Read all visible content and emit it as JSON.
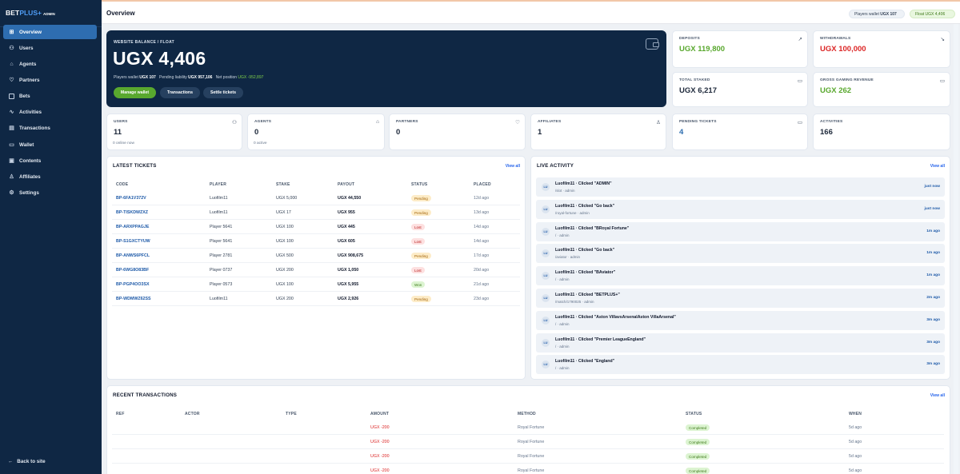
{
  "brand": {
    "part1": "BET",
    "part2": "PLUS+",
    "suffix": "ADMIN"
  },
  "sidebar": {
    "items": [
      {
        "label": "Overview",
        "icon": "dashboard-icon",
        "active": true
      },
      {
        "label": "Users",
        "icon": "users-icon"
      },
      {
        "label": "Agents",
        "icon": "store-icon"
      },
      {
        "label": "Partners",
        "icon": "handshake-icon"
      },
      {
        "label": "Bets",
        "icon": "ticket-icon"
      },
      {
        "label": "Activities",
        "icon": "activity-icon"
      },
      {
        "label": "Transactions",
        "icon": "receipt-icon"
      },
      {
        "label": "Wallet",
        "icon": "wallet-icon"
      },
      {
        "label": "Contents",
        "icon": "content-icon"
      },
      {
        "label": "Affiliates",
        "icon": "user-icon"
      },
      {
        "label": "Settings",
        "icon": "gear-icon"
      }
    ],
    "back_label": "Back to site"
  },
  "header": {
    "title": "Overview",
    "players_wallet_label": "Players wallet",
    "players_wallet_value": "UGX 107",
    "float_label": "Float",
    "float_value": "UGX 4,406"
  },
  "balance": {
    "label": "WEBSITE BALANCE / FLOAT",
    "amount": "UGX 4,406",
    "players_wallet_label": "Players wallet",
    "players_wallet_value": "UGX 107",
    "pending_label": "Pending liability",
    "pending_value": "UGX 957,106",
    "net_label": "Net position",
    "net_value": "UGX -952,897",
    "buttons": {
      "manage": "Manage wallet",
      "transactions": "Transactions",
      "settle": "Settle tickets"
    }
  },
  "stats_top": [
    {
      "label": "DEPOSITS",
      "value": "UGX 119,800",
      "tone": "green",
      "icon": "trend-up-icon"
    },
    {
      "label": "WITHDRAWALS",
      "value": "UGX 100,000",
      "tone": "red",
      "icon": "trend-down-icon"
    },
    {
      "label": "TOTAL STAKED",
      "value": "UGX 6,217",
      "tone": "dark",
      "icon": "ticket-icon"
    },
    {
      "label": "GROSS GAMING REVENUE",
      "value": "UGX 262",
      "tone": "green",
      "icon": "wallet-icon"
    }
  ],
  "stats_row": [
    {
      "label": "USERS",
      "value": "11",
      "sub": "0 online now",
      "icon": "users-icon"
    },
    {
      "label": "AGENTS",
      "value": "0",
      "sub": "0 active",
      "icon": "store-icon"
    },
    {
      "label": "PARTNERS",
      "value": "0",
      "sub": "",
      "icon": "handshake-icon"
    },
    {
      "label": "AFFILIATES",
      "value": "1",
      "sub": "",
      "icon": "user-icon"
    },
    {
      "label": "PENDING TICKETS",
      "value": "4",
      "sub": "",
      "icon": "ticket-icon",
      "tone": "blue"
    },
    {
      "label": "ACTIVITIES",
      "value": "166",
      "sub": "",
      "icon": ""
    }
  ],
  "latest_tickets": {
    "title": "LATEST TICKETS",
    "view_all": "View all",
    "columns": [
      "CODE",
      "PLAYER",
      "STAKE",
      "PAYOUT",
      "STATUS",
      "PLACED"
    ],
    "rows": [
      {
        "code": "BP-6FA1V372V",
        "player": "Luofilm11",
        "stake": "UGX 5,000",
        "payout": "UGX 44,550",
        "status": "Pending",
        "placed": "12d ago"
      },
      {
        "code": "BP-TISKDWZXZ",
        "player": "Luofilm11",
        "stake": "UGX 17",
        "payout": "UGX 955",
        "status": "Pending",
        "placed": "13d ago"
      },
      {
        "code": "BP-ARXPPAGJE",
        "player": "Player 5641",
        "stake": "UGX 100",
        "payout": "UGX 445",
        "status": "Lost",
        "placed": "14d ago"
      },
      {
        "code": "BP-S1GXCTYUW",
        "player": "Player 5641",
        "stake": "UGX 100",
        "payout": "UGX 605",
        "status": "Lost",
        "placed": "14d ago"
      },
      {
        "code": "BP-ANWS6PFCL",
        "player": "Player 2781",
        "stake": "UGX 500",
        "payout": "UGX 908,675",
        "status": "Pending",
        "placed": "17d ago"
      },
      {
        "code": "BP-6WG8O83BF",
        "player": "Player 0737",
        "stake": "UGX 200",
        "payout": "UGX 1,050",
        "status": "Lost",
        "placed": "20d ago"
      },
      {
        "code": "BP-PGP4OO3SX",
        "player": "Player 0573",
        "stake": "UGX 100",
        "payout": "UGX 5,955",
        "status": "Won",
        "placed": "21d ago"
      },
      {
        "code": "BP-WDMWZ62SS",
        "player": "Luofilm11",
        "stake": "UGX 200",
        "payout": "UGX 2,926",
        "status": "Pending",
        "placed": "23d ago"
      }
    ]
  },
  "live_activity": {
    "title": "LIVE ACTIVITY",
    "view_all": "View all",
    "items": [
      {
        "initials": "LU",
        "text": "Luofilm11 · Clicked \"ADMIN\"",
        "path": "/slot · admin",
        "time": "just now"
      },
      {
        "initials": "LU",
        "text": "Luofilm11 · Clicked \"Go back\"",
        "path": "/royal-fortune · admin",
        "time": "just now"
      },
      {
        "initials": "LU",
        "text": "Luofilm11 · Clicked \"BRoyal Fortune\"",
        "path": "/ · admin",
        "time": "1m ago"
      },
      {
        "initials": "LU",
        "text": "Luofilm11 · Clicked \"Go back\"",
        "path": "/aviator · admin",
        "time": "1m ago"
      },
      {
        "initials": "LU",
        "text": "Luofilm11 · Clicked \"BAviator\"",
        "path": "/ · admin",
        "time": "1m ago"
      },
      {
        "initials": "LU",
        "text": "Luofilm11 · Clicked \"BETPLUS+\"",
        "path": "/match/1790025 · admin",
        "time": "2m ago"
      },
      {
        "initials": "LU",
        "text": "Luofilm11 · Clicked \"Aston VillavsArsenalAston VillaArsenal\"",
        "path": "/ · admin",
        "time": "3m ago"
      },
      {
        "initials": "LU",
        "text": "Luofilm11 · Clicked \"Premier LeagueEngland\"",
        "path": "/ · admin",
        "time": "3m ago"
      },
      {
        "initials": "LU",
        "text": "Luofilm11 · Clicked \"England\"",
        "path": "/ · admin",
        "time": "3m ago"
      }
    ]
  },
  "recent_transactions": {
    "title": "RECENT TRANSACTIONS",
    "view_all": "View all",
    "columns": [
      "REF",
      "ACTOR",
      "TYPE",
      "AMOUNT",
      "METHOD",
      "STATUS",
      "WHEN"
    ],
    "rows": [
      {
        "ref": "",
        "actor": "",
        "type": "",
        "amount": "UGX -200",
        "method": "Royal Fortune",
        "status": "Completed",
        "when": "5d ago"
      },
      {
        "ref": "",
        "actor": "",
        "type": "",
        "amount": "UGX -200",
        "method": "Royal Fortune",
        "status": "Completed",
        "when": "5d ago"
      },
      {
        "ref": "",
        "actor": "",
        "type": "",
        "amount": "UGX -200",
        "method": "Royal Fortune",
        "status": "Completed",
        "when": "5d ago"
      },
      {
        "ref": "",
        "actor": "",
        "type": "",
        "amount": "UGX -200",
        "method": "Royal Fortune",
        "status": "Completed",
        "when": "5d ago"
      }
    ]
  },
  "colors": {
    "sidebar": "#0f2744",
    "accent": "#2e6db0",
    "green": "#59a82e",
    "red": "#dc2626"
  }
}
